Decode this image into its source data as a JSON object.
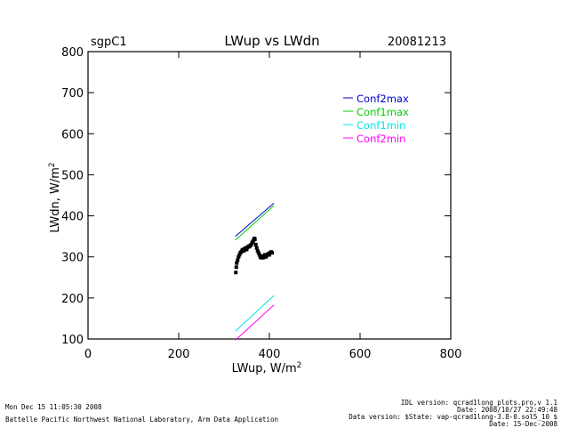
{
  "header": {
    "site": "sgpC1",
    "title": "LWup vs LWdn",
    "date": "20081213"
  },
  "footer": {
    "run_time": "Mon Dec 15 11:05:30 2008",
    "organization": "Battelle Pacific Northwest National Laboratory, Arm Data Application",
    "idl_version": "IDL version: qcrad1long_plots.pro,v 1.1",
    "idl_date": "Date: 2008/10/27 22:49:48",
    "data_version": "Data version: $State: vap-qcrad1long-3.8-0.sol5_10 $",
    "data_date": "Date: 15-Dec-2008"
  },
  "chart_data": {
    "type": "scatter",
    "xlabel": "LWup, W/m",
    "xlabel_sup": "2",
    "ylabel": "LWdn, W/m",
    "ylabel_sup": "2",
    "xlim": [
      0,
      800
    ],
    "ylim": [
      100,
      800
    ],
    "xticks": [
      0,
      200,
      400,
      600,
      800
    ],
    "yticks": [
      100,
      200,
      300,
      400,
      500,
      600,
      700,
      800
    ],
    "grid": false,
    "legend_placement": "top-right",
    "series": [
      {
        "name": "Conf2max",
        "color": "#0000cc",
        "kind": "line",
        "x": [
          325,
          410
        ],
        "y": [
          350,
          431
        ]
      },
      {
        "name": "Conf1max",
        "color": "#00cc00",
        "kind": "line",
        "x": [
          325,
          410
        ],
        "y": [
          341,
          425
        ]
      },
      {
        "name": "Conf1min",
        "color": "#00e5e5",
        "kind": "line",
        "x": [
          325,
          410
        ],
        "y": [
          119,
          206
        ]
      },
      {
        "name": "Conf2min",
        "color": "#ff00ff",
        "kind": "line",
        "x": [
          325,
          410
        ],
        "y": [
          97,
          183
        ]
      },
      {
        "name": "",
        "color": "#000000",
        "kind": "points",
        "x": [
          326,
          327,
          328,
          330,
          332,
          334,
          336,
          338,
          340,
          342,
          344,
          346,
          348,
          350,
          352,
          354,
          356,
          358,
          360,
          362,
          364,
          366,
          367,
          368,
          370,
          372,
          374,
          376,
          378,
          380,
          382,
          384,
          386,
          388,
          390,
          392,
          394,
          396,
          398,
          400,
          402,
          404,
          406
        ],
        "y": [
          262,
          275,
          285,
          292,
          300,
          305,
          310,
          312,
          316,
          318,
          315,
          320,
          322,
          318,
          323,
          326,
          325,
          328,
          330,
          335,
          338,
          342,
          345,
          343,
          330,
          322,
          315,
          310,
          305,
          300,
          298,
          302,
          298,
          302,
          305,
          300,
          303,
          306,
          308,
          305,
          310,
          312,
          310
        ]
      }
    ]
  }
}
